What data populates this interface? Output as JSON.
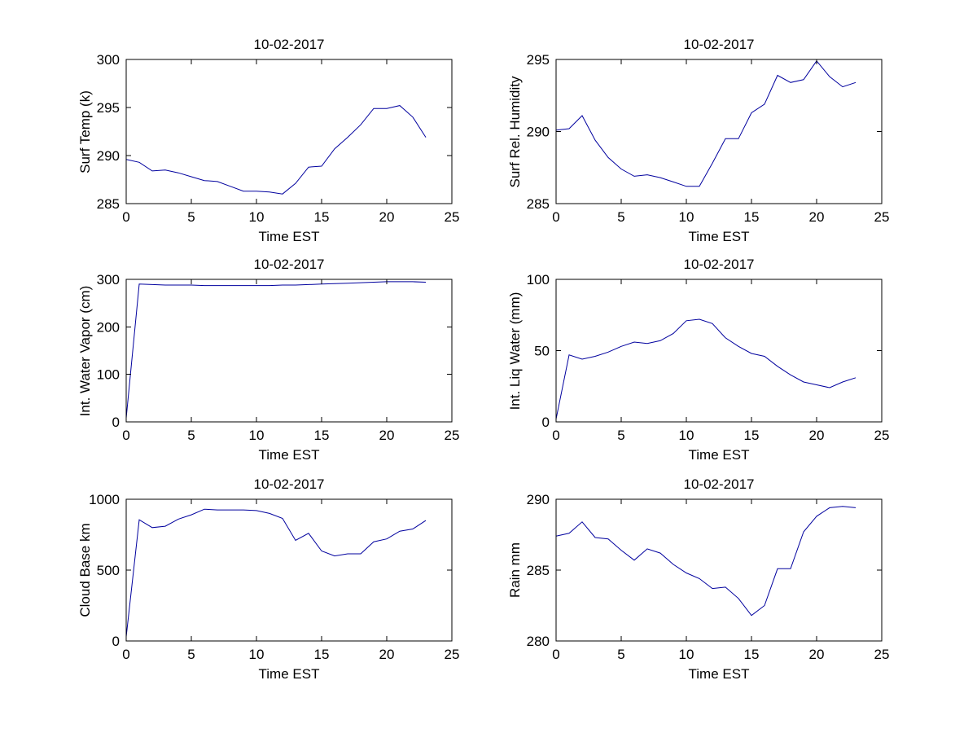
{
  "figure": {
    "background": "#ffffff",
    "axes_color": "#000000",
    "line_color": "#00009e"
  },
  "chart_data": [
    {
      "type": "line",
      "title": "10-02-2017",
      "xlabel": "Time EST",
      "ylabel": "Surf Temp (k)",
      "xlim": [
        0,
        25
      ],
      "ylim": [
        285,
        300
      ],
      "xticks": [
        0,
        5,
        10,
        15,
        20,
        25
      ],
      "yticks": [
        285,
        290,
        295,
        300
      ],
      "grid": false,
      "legend": null,
      "line_color": "#00009e",
      "x": [
        0,
        1,
        2,
        3,
        4,
        5,
        6,
        7,
        8,
        9,
        10,
        11,
        12,
        13,
        14,
        15,
        16,
        17,
        18,
        19,
        20,
        21,
        22,
        23
      ],
      "values": [
        289.6,
        289.3,
        288.4,
        288.5,
        288.2,
        287.8,
        287.4,
        287.3,
        286.8,
        286.3,
        286.3,
        286.2,
        286.0,
        287.1,
        288.8,
        288.9,
        290.7,
        291.9,
        293.2,
        294.9,
        294.9,
        295.2,
        294.0,
        291.9
      ]
    },
    {
      "type": "line",
      "title": "10-02-2017",
      "xlabel": "Time EST",
      "ylabel": "Surf Rel. Humidity",
      "xlim": [
        0,
        25
      ],
      "ylim": [
        285,
        295
      ],
      "xticks": [
        0,
        5,
        10,
        15,
        20,
        25
      ],
      "yticks": [
        285,
        290,
        295
      ],
      "grid": false,
      "legend": null,
      "line_color": "#00009e",
      "x": [
        0,
        1,
        2,
        3,
        4,
        5,
        6,
        7,
        8,
        9,
        10,
        11,
        12,
        13,
        14,
        15,
        16,
        17,
        18,
        19,
        20,
        21,
        22,
        23
      ],
      "values": [
        290.1,
        290.2,
        291.1,
        289.4,
        288.2,
        287.4,
        286.9,
        287.0,
        286.8,
        286.5,
        286.2,
        286.2,
        287.8,
        289.5,
        289.5,
        291.3,
        291.9,
        293.9,
        293.4,
        293.6,
        294.9,
        293.8,
        293.1,
        293.4
      ]
    },
    {
      "type": "line",
      "title": "10-02-2017",
      "xlabel": "Time EST",
      "ylabel": "Int. Water Vapor (cm)",
      "xlim": [
        0,
        25
      ],
      "ylim": [
        0,
        300
      ],
      "xticks": [
        0,
        5,
        10,
        15,
        20,
        25
      ],
      "yticks": [
        0,
        100,
        200,
        300
      ],
      "grid": false,
      "legend": null,
      "line_color": "#00009e",
      "x": [
        0,
        1,
        2,
        3,
        4,
        5,
        6,
        7,
        8,
        9,
        10,
        11,
        12,
        13,
        14,
        15,
        16,
        17,
        18,
        19,
        20,
        21,
        22,
        23
      ],
      "values": [
        8,
        290,
        289,
        288,
        288,
        288,
        287,
        287,
        287,
        287,
        287,
        287,
        288,
        288,
        289,
        290,
        291,
        292,
        293,
        294,
        295,
        295,
        295,
        294
      ]
    },
    {
      "type": "line",
      "title": "10-02-2017",
      "xlabel": "Time EST",
      "ylabel": "Int. Liq Water (mm)",
      "xlim": [
        0,
        25
      ],
      "ylim": [
        0,
        100
      ],
      "xticks": [
        0,
        5,
        10,
        15,
        20,
        25
      ],
      "yticks": [
        0,
        50,
        100
      ],
      "grid": false,
      "legend": null,
      "line_color": "#00009e",
      "x": [
        0,
        1,
        2,
        3,
        4,
        5,
        6,
        7,
        8,
        9,
        10,
        11,
        12,
        13,
        14,
        15,
        16,
        17,
        18,
        19,
        20,
        21,
        22,
        23
      ],
      "values": [
        2,
        47,
        44,
        46,
        49,
        53,
        56,
        55,
        57,
        62,
        71,
        72,
        69,
        59,
        53,
        48,
        46,
        39,
        33,
        28,
        26,
        24,
        28,
        31
      ]
    },
    {
      "type": "line",
      "title": "10-02-2017",
      "xlabel": "Time EST",
      "ylabel": "Cloud Base km",
      "xlim": [
        0,
        25
      ],
      "ylim": [
        0,
        1000
      ],
      "xticks": [
        0,
        5,
        10,
        15,
        20,
        25
      ],
      "yticks": [
        0,
        500,
        1000
      ],
      "grid": false,
      "legend": null,
      "line_color": "#00009e",
      "x": [
        0,
        1,
        2,
        3,
        4,
        5,
        6,
        7,
        8,
        9,
        10,
        11,
        12,
        13,
        14,
        15,
        16,
        17,
        18,
        19,
        20,
        21,
        22,
        23
      ],
      "values": [
        30,
        855,
        800,
        810,
        860,
        890,
        930,
        925,
        925,
        925,
        920,
        900,
        865,
        710,
        760,
        635,
        600,
        615,
        615,
        700,
        720,
        775,
        790,
        850
      ]
    },
    {
      "type": "line",
      "title": "10-02-2017",
      "xlabel": "Time EST",
      "ylabel": "Rain mm",
      "xlim": [
        0,
        25
      ],
      "ylim": [
        280,
        290
      ],
      "xticks": [
        0,
        5,
        10,
        15,
        20,
        25
      ],
      "yticks": [
        280,
        285,
        290
      ],
      "grid": false,
      "legend": null,
      "line_color": "#00009e",
      "x": [
        0,
        1,
        2,
        3,
        4,
        5,
        6,
        7,
        8,
        9,
        10,
        11,
        12,
        13,
        14,
        15,
        16,
        17,
        18,
        19,
        20,
        21,
        22,
        23
      ],
      "values": [
        287.4,
        287.6,
        288.4,
        287.3,
        287.2,
        286.4,
        285.7,
        286.5,
        286.2,
        285.4,
        284.8,
        284.4,
        283.7,
        283.8,
        283.0,
        281.8,
        282.5,
        285.1,
        285.1,
        287.7,
        288.8,
        289.4,
        289.5,
        289.4
      ]
    }
  ]
}
